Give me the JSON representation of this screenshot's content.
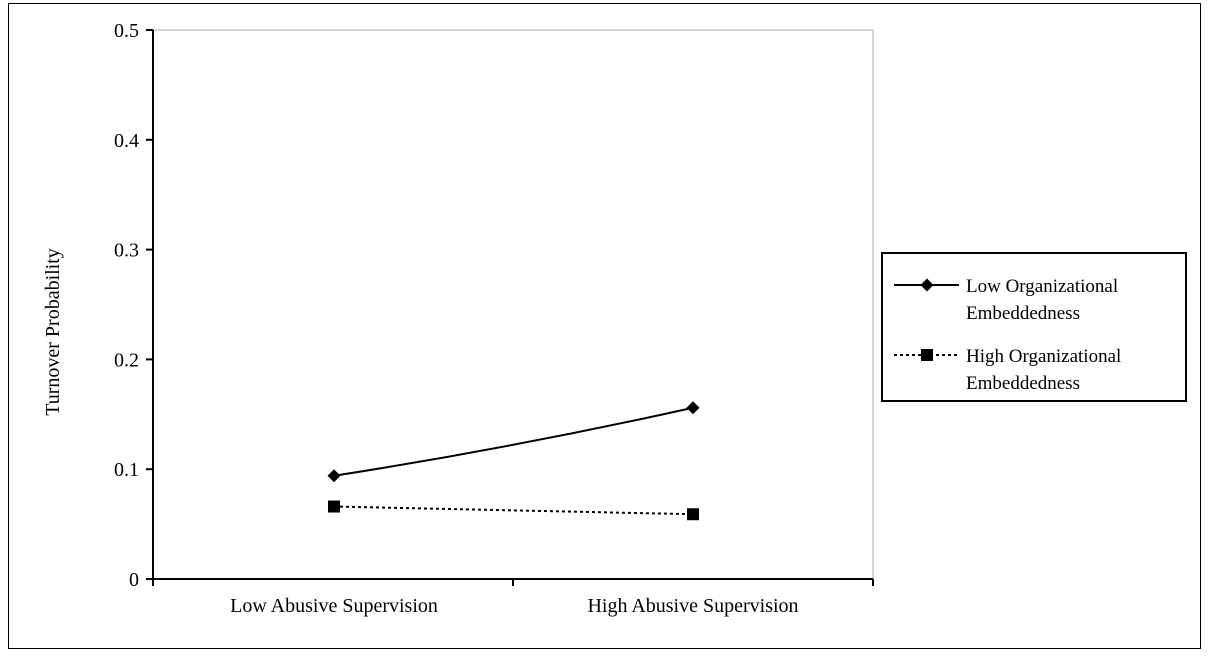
{
  "chart_data": {
    "type": "line",
    "categories": [
      "Low Abusive Supervision",
      "High Abusive Supervision"
    ],
    "series": [
      {
        "name": [
          "Low Organizational",
          "Embeddedness"
        ],
        "values": [
          0.094,
          0.156
        ],
        "marker": "diamond",
        "line_style": "solid",
        "color": "#000000"
      },
      {
        "name": [
          "High Organizational",
          "Embeddedness"
        ],
        "values": [
          0.066,
          0.059
        ],
        "marker": "square",
        "line_style": "dotted",
        "color": "#000000"
      }
    ],
    "ylabel": "Turnover Probability",
    "ylim": [
      0,
      0.5
    ],
    "yticks": [
      "0",
      "0.1",
      "0.2",
      "0.3",
      "0.4",
      "0.5"
    ],
    "grid": false,
    "legend_position": "right"
  }
}
